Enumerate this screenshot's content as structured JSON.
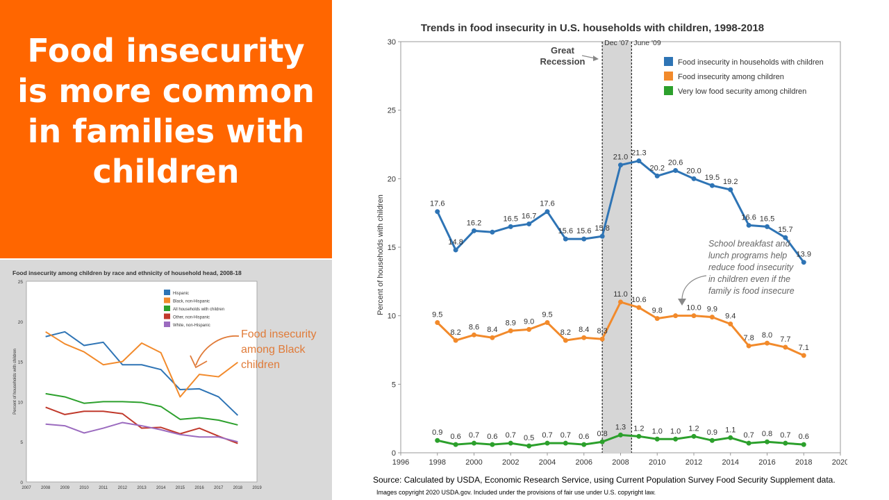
{
  "headline": "Food insecurity is more common in families with children",
  "source_note": "Source: Calculated by USDA, Economic Research Service, using Current Population Survey Food Security Supplement data.",
  "copyright_note": "Images copyright 2020 USDA.gov. Included under the provisions of fair use under U.S. copyright law.",
  "colors": {
    "accent": "#ff6600",
    "blue": "#2e74b5",
    "orange": "#f28a2b",
    "green": "#2ca02c",
    "red": "#c0392b",
    "purple": "#9b6bbf",
    "callout": "#e07b39"
  },
  "chart_data": [
    {
      "type": "line",
      "title": "Trends in food insecurity in U.S. households with children, 1998-2018",
      "ylabel": "Percent of households with children",
      "xlim": [
        1996,
        2020
      ],
      "ylim": [
        0,
        30
      ],
      "x_ticks": [
        1996,
        1998,
        2000,
        2002,
        2004,
        2006,
        2008,
        2010,
        2012,
        2014,
        2016,
        2018,
        2020
      ],
      "y_ticks": [
        0,
        5,
        10,
        15,
        20,
        25,
        30
      ],
      "grid": false,
      "legend": "top-right",
      "x": [
        1998,
        1999,
        2000,
        2001,
        2002,
        2003,
        2004,
        2005,
        2006,
        2007,
        2008,
        2009,
        2010,
        2011,
        2012,
        2013,
        2014,
        2015,
        2016,
        2017,
        2018
      ],
      "series": [
        {
          "name": "Food insecurity in households with children",
          "values": [
            17.6,
            14.8,
            16.2,
            16.1,
            16.5,
            16.7,
            17.6,
            15.6,
            15.6,
            15.8,
            21.0,
            21.3,
            20.2,
            20.6,
            20.0,
            19.5,
            19.2,
            16.6,
            16.5,
            15.7,
            13.9
          ],
          "labels": [
            "17.6",
            "14.8",
            "16.2",
            "",
            "16.5",
            "16.7",
            "17.6",
            "15.6",
            "15.6",
            "15.8",
            "21.0",
            "21.3",
            "20.2",
            "20.6",
            "20.0",
            "19.5",
            "19.2",
            "16.6",
            "16.5",
            "15.7",
            "13.9"
          ]
        },
        {
          "name": "Food insecurity among children",
          "values": [
            9.5,
            8.2,
            8.6,
            8.4,
            8.9,
            9.0,
            9.5,
            8.2,
            8.4,
            8.3,
            11.0,
            10.6,
            9.8,
            10.0,
            10.0,
            9.9,
            9.4,
            7.8,
            8.0,
            7.7,
            7.1
          ],
          "labels": [
            "9.5",
            "8.2",
            "8.6",
            "8.4",
            "8.9",
            "9.0",
            "9.5",
            "8.2",
            "8.4",
            "8.3",
            "11.0",
            "10.6",
            "9.8",
            "",
            "10.0",
            "9.9",
            "9.4",
            "7.8",
            "8.0",
            "7.7",
            "7.1"
          ]
        },
        {
          "name": "Very low food security among children",
          "values": [
            0.9,
            0.6,
            0.7,
            0.6,
            0.7,
            0.5,
            0.7,
            0.7,
            0.6,
            0.8,
            1.3,
            1.2,
            1.0,
            1.0,
            1.2,
            0.9,
            1.1,
            0.7,
            0.8,
            0.7,
            0.6
          ],
          "labels": [
            "0.9",
            "0.6",
            "0.7",
            "0.6",
            "0.7",
            "0.5",
            "0.7",
            "0.7",
            "0.6",
            "0.8",
            "1.3",
            "1.2",
            "1.0",
            "1.0",
            "1.2",
            "0.9",
            "1.1",
            "0.7",
            "0.8",
            "0.7",
            "0.6"
          ]
        }
      ],
      "shaded_region": {
        "x_start": 2007.0,
        "x_end": 2008.6,
        "label": "Great Recession",
        "start_label": "Dec '07",
        "end_label": "June '09"
      },
      "annotations": [
        {
          "text": "School breakfast and lunch programs help reduce food insecurity in children even if the family is food insecure"
        }
      ]
    },
    {
      "type": "line",
      "title": "Food insecurity among children by race and ethnicity of household head, 2008-18",
      "ylabel": "Percent of households with children",
      "xlim": [
        2007,
        2019
      ],
      "ylim": [
        0,
        25
      ],
      "x_ticks": [
        2007,
        2008,
        2009,
        2010,
        2011,
        2012,
        2013,
        2014,
        2015,
        2016,
        2017,
        2018,
        2019
      ],
      "y_ticks": [
        0,
        5,
        10,
        15,
        20,
        25
      ],
      "grid": false,
      "legend": "top-right",
      "x": [
        2008,
        2009,
        2010,
        2011,
        2012,
        2013,
        2014,
        2015,
        2016,
        2017,
        2018
      ],
      "series": [
        {
          "name": "Hispanic",
          "values": [
            18.1,
            18.7,
            17.0,
            17.4,
            14.6,
            14.6,
            14.0,
            11.5,
            11.6,
            10.6,
            8.3
          ]
        },
        {
          "name": "Black, non-Hispanic",
          "values": [
            18.7,
            17.2,
            16.2,
            14.6,
            15.0,
            17.3,
            16.1,
            10.6,
            13.4,
            13.1,
            14.9
          ]
        },
        {
          "name": "All households with children",
          "values": [
            11.0,
            10.6,
            9.8,
            10.0,
            10.0,
            9.9,
            9.4,
            7.8,
            8.0,
            7.7,
            7.1
          ]
        },
        {
          "name": "Other, non-Hispanic",
          "values": [
            9.3,
            8.4,
            8.8,
            8.8,
            8.5,
            6.7,
            6.8,
            6.0,
            6.7,
            5.7,
            4.8
          ]
        },
        {
          "name": "White, non-Hispanic",
          "values": [
            7.2,
            7.0,
            6.1,
            6.7,
            7.4,
            7.0,
            6.5,
            5.9,
            5.6,
            5.6,
            5.0
          ]
        }
      ],
      "annotations": [
        {
          "text": "Food insecurity among Black children"
        }
      ]
    }
  ]
}
